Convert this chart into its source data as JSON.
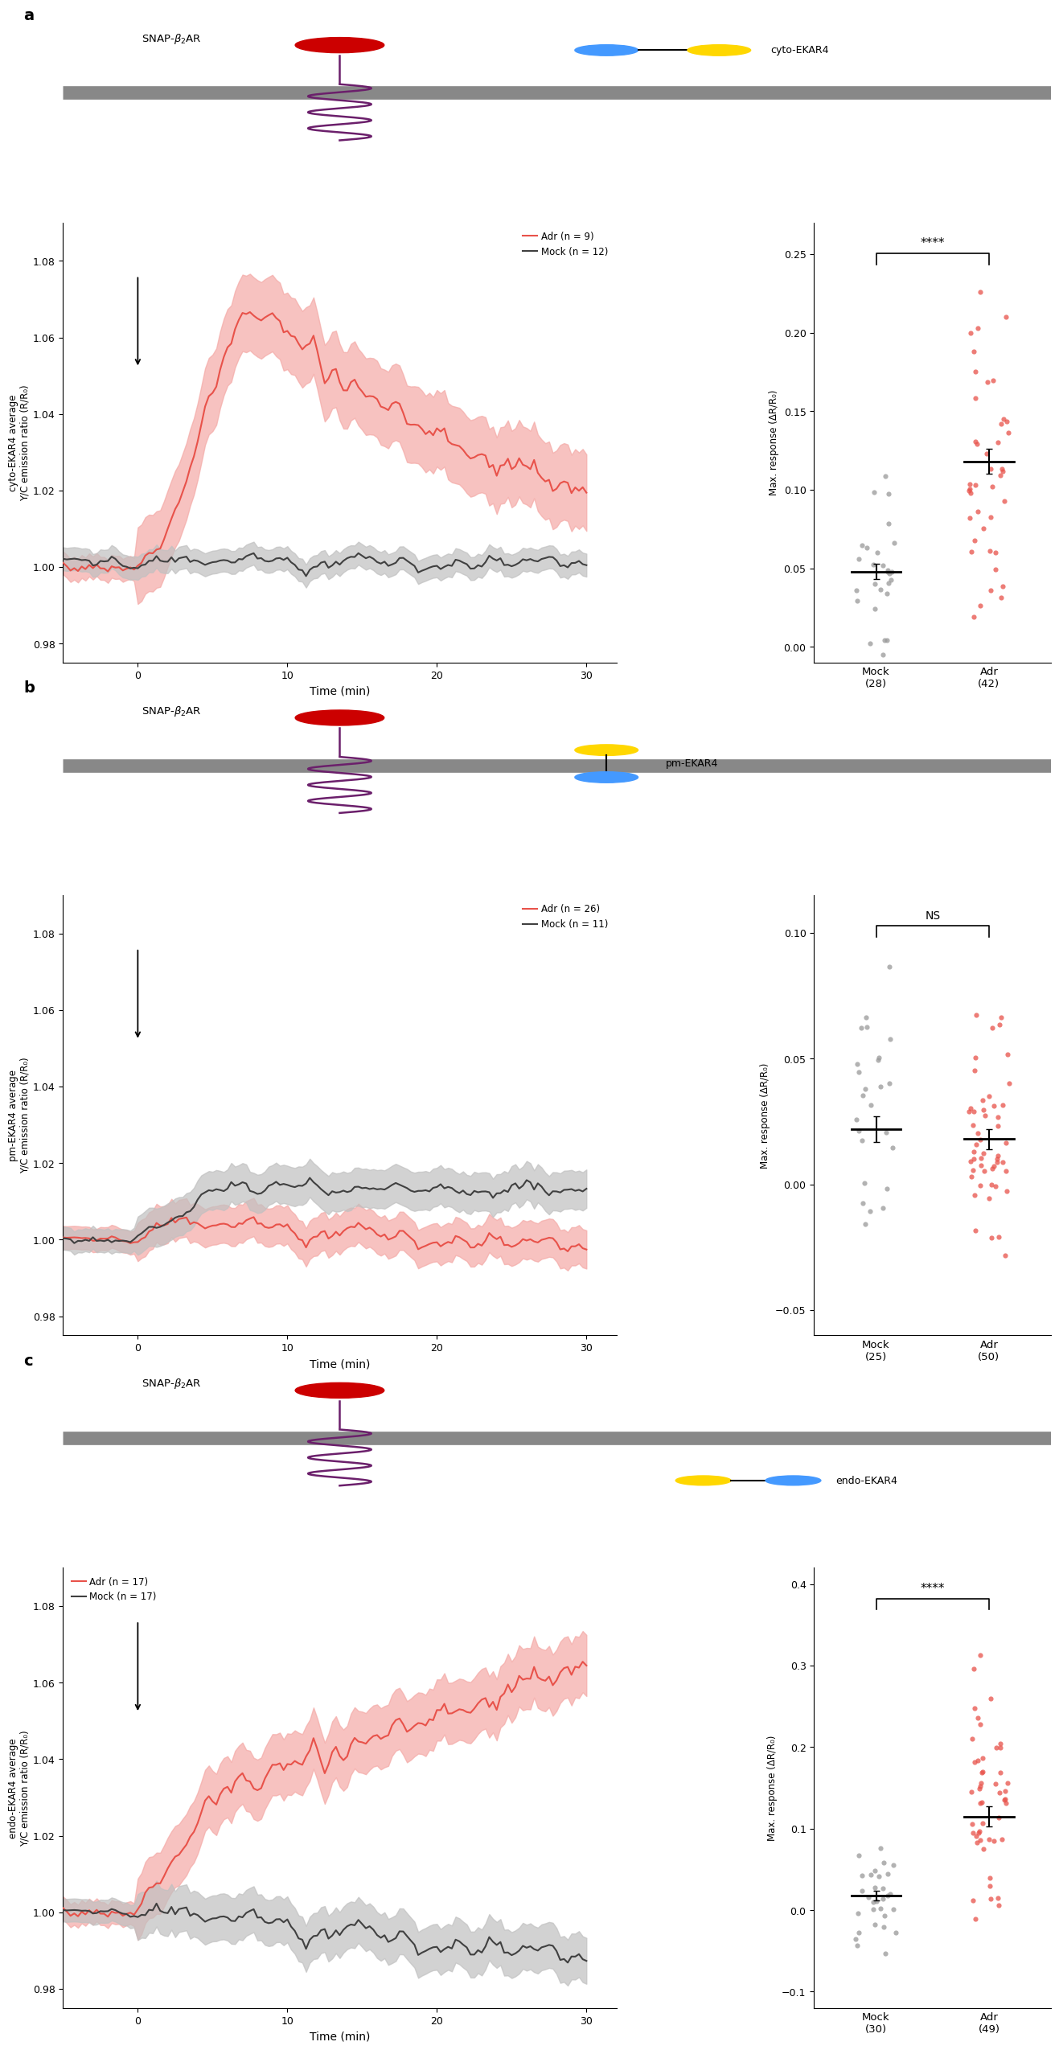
{
  "panels": [
    "a",
    "b",
    "c"
  ],
  "panel_a": {
    "sensor_label": "cyto-EKAR4",
    "adr_label": "Adr (n = 9)",
    "mock_label": "Mock (n = 12)",
    "ylabel": "cyto-EKAR4 average\nY/C emission ratio (R/R₀)",
    "xlabel": "Time (min)",
    "ylim": [
      0.975,
      1.09
    ],
    "yticks": [
      0.98,
      1.0,
      1.02,
      1.04,
      1.06,
      1.08
    ],
    "xlim": [
      -5,
      32
    ],
    "xticks": [
      0,
      10,
      20,
      30
    ],
    "scatter_ylabel": "Max. response (ΔR/R₀)",
    "scatter_ylim": [
      -0.01,
      0.27
    ],
    "scatter_yticks": [
      0.0,
      0.05,
      0.1,
      0.15,
      0.2,
      0.25
    ],
    "sig_label": "****",
    "mock_n": 28,
    "adr_n": 42,
    "mock_scatter_mean": 0.048,
    "mock_scatter_sem": 0.005,
    "adr_scatter_mean": 0.118,
    "adr_scatter_sem": 0.008,
    "sensor_type": "cyto",
    "legend_loc": "upper right"
  },
  "panel_b": {
    "sensor_label": "pm-EKAR4",
    "adr_label": "Adr (n = 26)",
    "mock_label": "Mock (n = 11)",
    "ylabel": "pm-EKAR4 average\nY/C emission ratio (R/R₀)",
    "xlabel": "Time (min)",
    "ylim": [
      0.975,
      1.09
    ],
    "yticks": [
      0.98,
      1.0,
      1.02,
      1.04,
      1.06,
      1.08
    ],
    "xlim": [
      -5,
      32
    ],
    "xticks": [
      0,
      10,
      20,
      30
    ],
    "scatter_ylabel": "Max. response (ΔR/R₀)",
    "scatter_ylim": [
      -0.06,
      0.115
    ],
    "scatter_yticks": [
      -0.05,
      0.0,
      0.05,
      0.1
    ],
    "sig_label": "NS",
    "mock_n": 25,
    "adr_n": 50,
    "mock_scatter_mean": 0.022,
    "mock_scatter_sem": 0.005,
    "adr_scatter_mean": 0.018,
    "adr_scatter_sem": 0.004,
    "sensor_type": "pm",
    "legend_loc": "upper right"
  },
  "panel_c": {
    "sensor_label": "endo-EKAR4",
    "adr_label": "Adr (n = 17)",
    "mock_label": "Mock (n = 17)",
    "ylabel": "endo-EKAR4 average\nY/C emission ratio (R/R₀)",
    "xlabel": "Time (min)",
    "ylim": [
      0.975,
      1.09
    ],
    "yticks": [
      0.98,
      1.0,
      1.02,
      1.04,
      1.06,
      1.08
    ],
    "xlim": [
      -5,
      32
    ],
    "xticks": [
      0,
      10,
      20,
      30
    ],
    "scatter_ylabel": "Max. response (ΔR/R₀)",
    "scatter_ylim": [
      -0.12,
      0.42
    ],
    "scatter_yticks": [
      -0.1,
      0.0,
      0.1,
      0.2,
      0.3,
      0.4
    ],
    "sig_label": "****",
    "mock_n": 30,
    "adr_n": 49,
    "mock_scatter_mean": 0.018,
    "mock_scatter_sem": 0.006,
    "adr_scatter_mean": 0.115,
    "adr_scatter_sem": 0.012,
    "sensor_type": "endo",
    "legend_loc": "upper left"
  },
  "colors": {
    "adr_line": "#E8524A",
    "adr_fill": "#F4A9A6",
    "mock_line": "#404040",
    "mock_fill": "#C0C0C0",
    "adr_scatter": "#E8524A",
    "mock_scatter": "#999999",
    "snap_red": "#CC0000",
    "membrane_gray": "#888888",
    "receptor_purple": "#6B1F6B",
    "sensor_yellow": "#FFD700",
    "sensor_blue": "#4499FF",
    "endo_gray": "#888888"
  }
}
